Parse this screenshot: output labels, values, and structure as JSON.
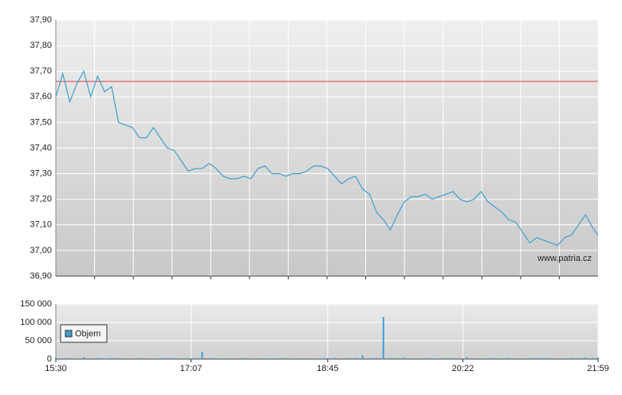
{
  "chart_data": [
    {
      "type": "line",
      "watermark": "www.patria.cz",
      "xlim": [
        930,
        1319
      ],
      "ylim": [
        36.9,
        37.9
      ],
      "yticks": [
        {
          "value": 36.9,
          "label": "36,90"
        },
        {
          "value": 37.0,
          "label": "37,00"
        },
        {
          "value": 37.1,
          "label": "37,10"
        },
        {
          "value": 37.2,
          "label": "37,20"
        },
        {
          "value": 37.3,
          "label": "37,30"
        },
        {
          "value": 37.4,
          "label": "37,40"
        },
        {
          "value": 37.5,
          "label": "37,50"
        },
        {
          "value": 37.6,
          "label": "37,60"
        },
        {
          "value": 37.7,
          "label": "37,70"
        },
        {
          "value": 37.8,
          "label": "37,80"
        },
        {
          "value": 37.9,
          "label": "37,90"
        }
      ],
      "grid": true,
      "reference_line": {
        "value": 37.66,
        "color": "#d9534f"
      },
      "x": [
        930,
        935,
        940,
        945,
        950,
        955,
        960,
        965,
        970,
        975,
        980,
        985,
        990,
        995,
        1000,
        1005,
        1010,
        1015,
        1020,
        1025,
        1030,
        1035,
        1040,
        1045,
        1050,
        1055,
        1060,
        1065,
        1070,
        1075,
        1080,
        1085,
        1090,
        1095,
        1100,
        1105,
        1110,
        1115,
        1120,
        1125,
        1130,
        1135,
        1140,
        1145,
        1150,
        1155,
        1160,
        1165,
        1170,
        1175,
        1180,
        1185,
        1190,
        1195,
        1200,
        1205,
        1210,
        1215,
        1220,
        1225,
        1230,
        1235,
        1240,
        1245,
        1250,
        1255,
        1260,
        1265,
        1270,
        1275,
        1280,
        1285,
        1290,
        1295,
        1300,
        1305,
        1310,
        1315,
        1319
      ],
      "series": [
        {
          "color": "#3ea0d0",
          "values": [
            37.6,
            37.69,
            37.58,
            37.65,
            37.7,
            37.6,
            37.68,
            37.62,
            37.64,
            37.5,
            37.49,
            37.48,
            37.44,
            37.44,
            37.48,
            37.44,
            37.4,
            37.39,
            37.35,
            37.31,
            37.32,
            37.32,
            37.34,
            37.32,
            37.29,
            37.28,
            37.28,
            37.29,
            37.28,
            37.32,
            37.33,
            37.3,
            37.3,
            37.29,
            37.3,
            37.3,
            37.31,
            37.33,
            37.33,
            37.32,
            37.29,
            37.26,
            37.28,
            37.29,
            37.24,
            37.22,
            37.15,
            37.12,
            37.08,
            37.14,
            37.19,
            37.21,
            37.21,
            37.22,
            37.2,
            37.21,
            37.22,
            37.23,
            37.2,
            37.19,
            37.2,
            37.23,
            37.19,
            37.17,
            37.15,
            37.12,
            37.11,
            37.07,
            37.03,
            37.05,
            37.04,
            37.03,
            37.02,
            37.05,
            37.06,
            37.1,
            37.14,
            37.09,
            37.06
          ]
        }
      ]
    },
    {
      "type": "bar",
      "xlim": [
        930,
        1319
      ],
      "xticks": [
        {
          "value": 930,
          "label": "15:30"
        },
        {
          "value": 1027,
          "label": "17:07"
        },
        {
          "value": 1125,
          "label": "18:45"
        },
        {
          "value": 1222,
          "label": "20:22"
        },
        {
          "value": 1319,
          "label": "21:59"
        }
      ],
      "ylim": [
        0,
        150000
      ],
      "yticks": [
        0,
        {
          "value": 50000,
          "label": "50 000"
        },
        {
          "value": 100000,
          "label": "100 000"
        },
        {
          "value": 150000,
          "label": "150 000"
        }
      ],
      "grid": true,
      "legend": "bottom-left",
      "x": [
        930,
        935,
        940,
        945,
        950,
        955,
        960,
        965,
        970,
        975,
        980,
        985,
        990,
        995,
        1000,
        1005,
        1010,
        1015,
        1020,
        1025,
        1030,
        1035,
        1040,
        1045,
        1050,
        1055,
        1060,
        1065,
        1070,
        1075,
        1080,
        1085,
        1090,
        1095,
        1100,
        1105,
        1110,
        1115,
        1120,
        1125,
        1130,
        1135,
        1140,
        1145,
        1150,
        1155,
        1160,
        1165,
        1170,
        1175,
        1180,
        1185,
        1190,
        1195,
        1200,
        1205,
        1210,
        1215,
        1220,
        1225,
        1230,
        1235,
        1240,
        1245,
        1250,
        1255,
        1260,
        1265,
        1270,
        1275,
        1280,
        1285,
        1290,
        1295,
        1300,
        1305,
        1310,
        1315,
        1319
      ],
      "series": [
        {
          "name": "Objem",
          "color": "#3ea0d0",
          "values": [
            4000,
            2000,
            3000,
            1500,
            5000,
            2000,
            3000,
            1500,
            2500,
            3000,
            2000,
            1500,
            2500,
            2000,
            1800,
            2200,
            2500,
            3000,
            2000,
            2500,
            3000,
            20000,
            2500,
            2000,
            1800,
            2200,
            2000,
            2500,
            1500,
            2000,
            1800,
            2200,
            2000,
            2500,
            1500,
            2000,
            2200,
            1800,
            2000,
            2500,
            3000,
            2000,
            2500,
            3000,
            10000,
            2500,
            3000,
            115000,
            3000,
            2500,
            4000,
            2000,
            2200,
            2500,
            1800,
            2000,
            2500,
            3000,
            2000,
            5000,
            2000,
            1800,
            2000,
            2500,
            2200,
            3000,
            2000,
            1800,
            2500,
            2000,
            3000,
            2500,
            2000,
            2200,
            3000,
            2500,
            4000,
            3000,
            5000
          ]
        }
      ]
    }
  ]
}
